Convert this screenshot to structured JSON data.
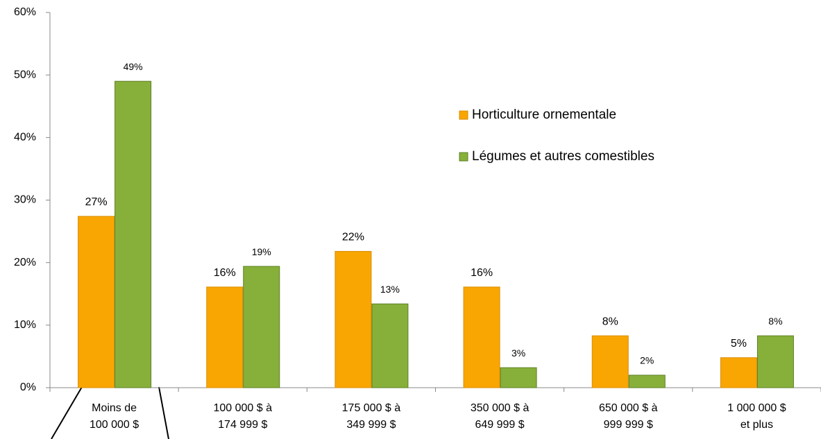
{
  "chart_data": {
    "type": "bar",
    "categories": [
      [
        "Moins de",
        "100 000 $"
      ],
      [
        "100 000 $ à",
        "174 999 $"
      ],
      [
        "175 000 $ à",
        "349 999 $"
      ],
      [
        "350 000 $ à",
        "649 999 $"
      ],
      [
        "650 000 $ à",
        "999 999 $"
      ],
      [
        "1 000 000 $",
        "et plus"
      ]
    ],
    "series": [
      {
        "name": "Horticulture ornementale",
        "color": "#f9a602",
        "values": [
          27.4,
          16.1,
          21.8,
          16.1,
          8.3,
          4.8
        ],
        "value_labels": [
          "27%",
          "16%",
          "22%",
          "16%",
          "8%",
          "5%"
        ]
      },
      {
        "name": "Légumes et autres comestibles",
        "color": "#86b03a",
        "values": [
          49.0,
          19.4,
          13.4,
          3.2,
          2.0,
          8.3
        ],
        "value_labels": [
          "49%",
          "19%",
          "13%",
          "3%",
          "2%",
          "8%"
        ]
      }
    ],
    "ylim": [
      0,
      60
    ],
    "yticks": [
      {
        "value": 0,
        "label": "0%"
      },
      {
        "value": 10,
        "label": "10%"
      },
      {
        "value": 20,
        "label": "20%"
      },
      {
        "value": 30,
        "label": "30%"
      },
      {
        "value": 40,
        "label": "40%"
      },
      {
        "value": 50,
        "label": "50%"
      },
      {
        "value": 60,
        "label": "60%"
      }
    ],
    "legend": "right"
  }
}
